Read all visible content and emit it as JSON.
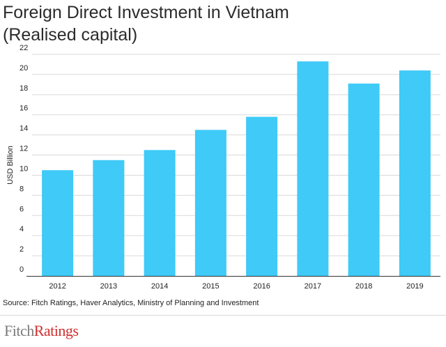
{
  "title_line1": "Foreign Direct Investment in Vietnam",
  "title_line2": "(Realised capital)",
  "source": "Source: Fitch Ratings, Haver Analytics, Ministry of Planning and Investment",
  "logo": {
    "part1": "Fitch",
    "part2": "Ratings",
    "color1": "#7a7a7a",
    "color2": "#cf2f2f"
  },
  "colors": {
    "bar": "#3fcaf7",
    "grid": "#d9d9d9"
  },
  "chart_data": {
    "type": "bar",
    "categories": [
      "2012",
      "2013",
      "2014",
      "2015",
      "2016",
      "2017",
      "2018",
      "2019"
    ],
    "values": [
      10.5,
      11.5,
      12.5,
      14.5,
      15.8,
      21.3,
      19.1,
      20.4
    ],
    "title": "Foreign Direct Investment in Vietnam (Realised capital)",
    "xlabel": "",
    "ylabel": "USD Billion",
    "ylim": [
      0,
      22
    ],
    "yticks": [
      0,
      2,
      4,
      6,
      8,
      10,
      12,
      14,
      16,
      18,
      20,
      22
    ],
    "grid": true,
    "legend": "none"
  }
}
